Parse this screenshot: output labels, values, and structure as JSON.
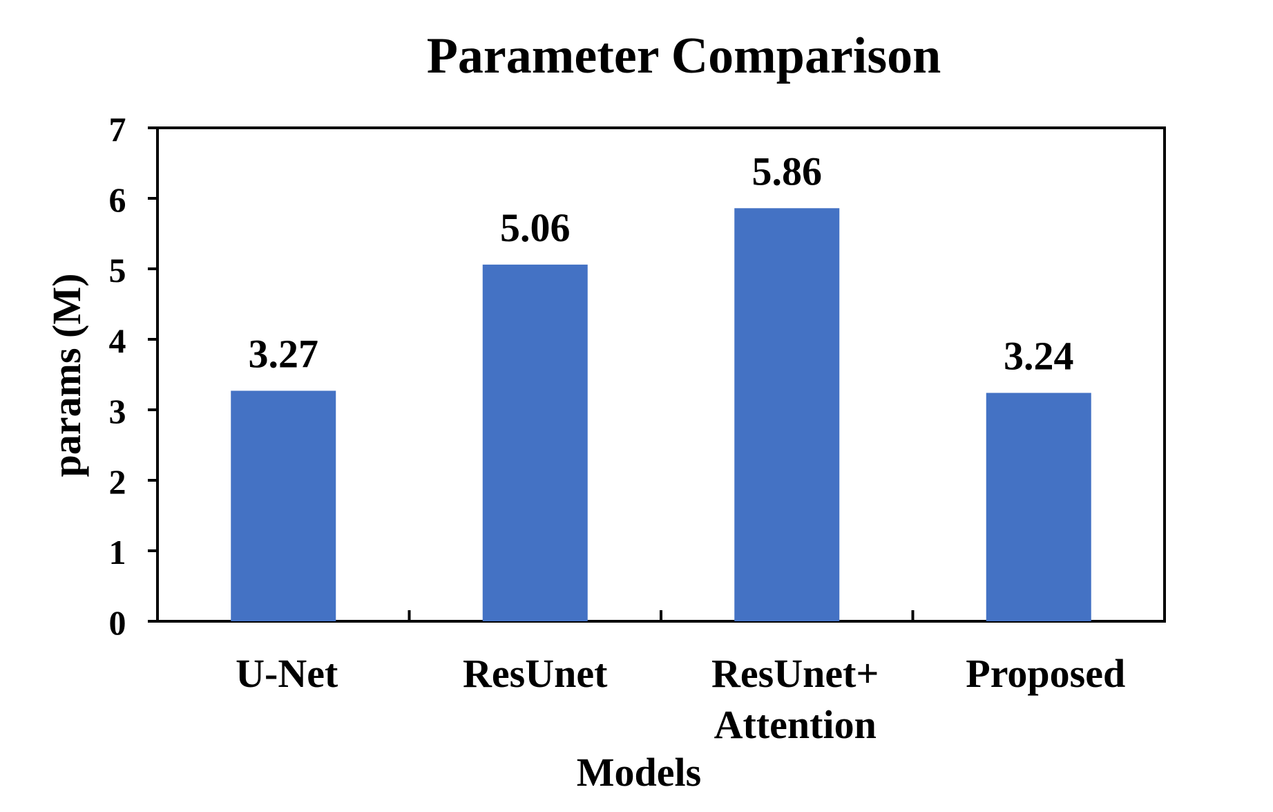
{
  "chart_data": {
    "type": "bar",
    "title": "Parameter Comparison",
    "xlabel": "Models",
    "ylabel": "params (M)",
    "categories": [
      "U-Net",
      "ResUnet",
      "ResUnet+ Attention",
      "Proposed"
    ],
    "category_lines": [
      [
        "U-Net"
      ],
      [
        "ResUnet"
      ],
      [
        "ResUnet+",
        "Attention"
      ],
      [
        "Proposed"
      ]
    ],
    "values": [
      3.27,
      5.06,
      5.86,
      3.24
    ],
    "value_labels": [
      "3.27",
      "5.06",
      "5.86",
      "3.24"
    ],
    "ylim": [
      0,
      7
    ],
    "yticks": [
      0,
      1,
      2,
      3,
      4,
      5,
      6,
      7
    ],
    "grid": false,
    "legend": "none",
    "bar_color": "#4472C4"
  }
}
